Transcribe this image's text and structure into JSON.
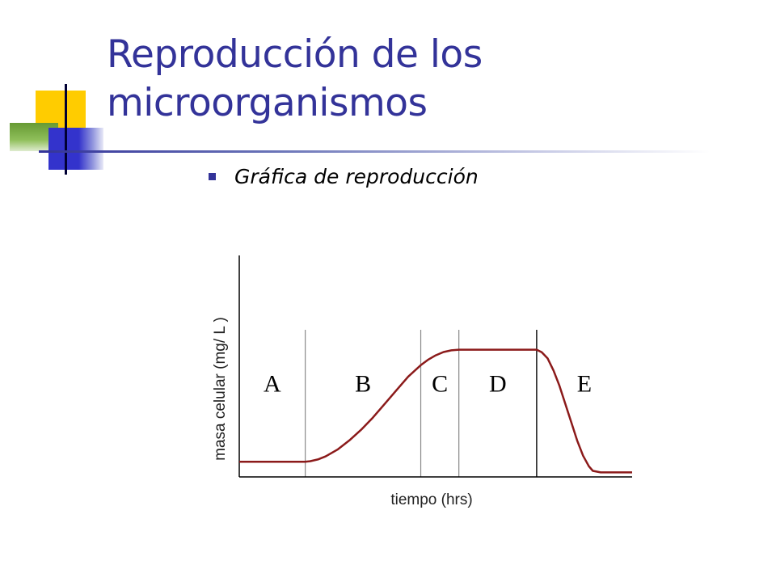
{
  "slide": {
    "title": "Reproducción de los microorganismos",
    "bullet": "Gráfica de reproducción"
  },
  "colors": {
    "title": "#333399",
    "accent_yellow": "#FFCC00",
    "accent_green": "#669933",
    "accent_blue": "#3333CC",
    "curve": "#8B1A1A",
    "axis": "#000000",
    "phase_line": "#888888"
  },
  "chart_data": {
    "type": "line",
    "title": "",
    "xlabel": "tiempo (hrs)",
    "ylabel": "masa celular (mg/ L )",
    "x_tick_labels": false,
    "y_tick_labels": false,
    "xlim": [
      0,
      100
    ],
    "ylim": [
      0,
      100
    ],
    "grid": false,
    "phases": [
      {
        "label": "A",
        "start": 0,
        "end": 16.8
      },
      {
        "label": "B",
        "start": 16.8,
        "end": 46.2
      },
      {
        "label": "C",
        "start": 46.2,
        "end": 55.9
      },
      {
        "label": "D",
        "start": 55.9,
        "end": 75.7
      },
      {
        "label": "E",
        "start": 75.7,
        "end": 100
      }
    ],
    "phase_dividers": [
      {
        "x": 16.8,
        "style": "gray"
      },
      {
        "x": 46.2,
        "style": "gray"
      },
      {
        "x": 55.9,
        "style": "gray"
      },
      {
        "x": 75.7,
        "style": "dark"
      }
    ],
    "series": [
      {
        "x": [
          0,
          16.8,
          18,
          20,
          22,
          25,
          28,
          31,
          34,
          37,
          40,
          43,
          46.2,
          48,
          50,
          52,
          54,
          55.9,
          60,
          65,
          70,
          75.7,
          77,
          78.5,
          80,
          81.5,
          83,
          84.5,
          86,
          87.5,
          89,
          90,
          92,
          95,
          100
        ],
        "y": [
          10,
          10,
          10.3,
          11.5,
          13.5,
          18,
          24,
          31,
          39,
          48,
          57,
          66,
          73.5,
          77,
          80,
          82.2,
          83.3,
          83.7,
          83.7,
          83.7,
          83.7,
          83.7,
          82,
          78,
          70,
          60,
          48,
          36,
          24,
          14,
          7,
          4,
          3,
          3,
          3
        ]
      }
    ]
  }
}
